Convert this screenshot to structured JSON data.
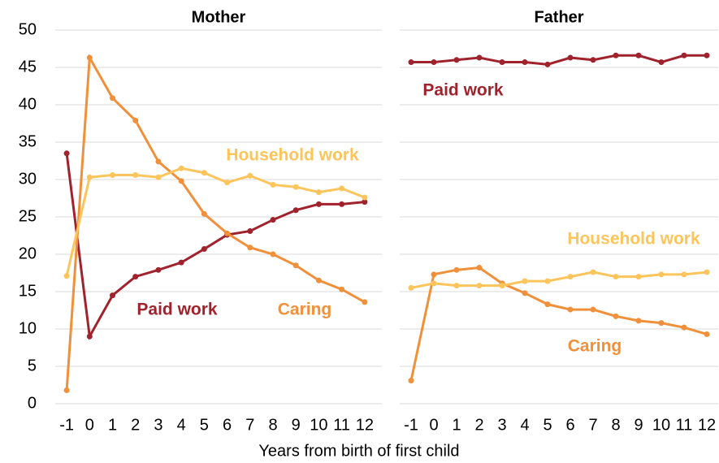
{
  "chart_data": [
    {
      "type": "line",
      "title": "Mother",
      "x": [
        -1,
        0,
        1,
        2,
        3,
        4,
        5,
        6,
        7,
        8,
        9,
        10,
        11,
        12
      ],
      "xlim": [
        -1.5,
        12.75
      ],
      "ylim": [
        0,
        50
      ],
      "yticks": [
        0,
        5,
        10,
        15,
        20,
        25,
        30,
        35,
        40,
        45,
        50
      ],
      "grid": true,
      "series": [
        {
          "name": "Paid work",
          "color": "#a0222d",
          "values": [
            33.5,
            9,
            14.5,
            17,
            17.9,
            18.9,
            20.7,
            22.6,
            23.1,
            24.6,
            25.9,
            26.7,
            26.7,
            27.0
          ]
        },
        {
          "name": "Caring",
          "color": "#f0903a",
          "values": [
            1.8,
            46.3,
            40.9,
            37.9,
            32.4,
            29.8,
            25.4,
            22.8,
            20.9,
            20.0,
            18.5,
            16.5,
            15.3,
            13.6
          ]
        },
        {
          "name": "Household work",
          "color": "#fcc55c",
          "values": [
            17.1,
            30.3,
            30.6,
            30.6,
            30.3,
            31.5,
            30.9,
            29.6,
            30.5,
            29.3,
            29.0,
            28.3,
            28.8,
            27.6
          ]
        }
      ]
    },
    {
      "type": "line",
      "title": "Father",
      "x": [
        -1,
        0,
        1,
        2,
        3,
        4,
        5,
        6,
        7,
        8,
        9,
        10,
        11,
        12
      ],
      "xlim": [
        -1.5,
        12.5
      ],
      "ylim": [
        0,
        50
      ],
      "yticks": [
        0,
        5,
        10,
        15,
        20,
        25,
        30,
        35,
        40,
        45,
        50
      ],
      "grid": true,
      "series": [
        {
          "name": "Paid work",
          "color": "#a0222d",
          "values": [
            45.7,
            45.7,
            46.0,
            46.3,
            45.7,
            45.7,
            45.4,
            46.3,
            46.0,
            46.6,
            46.6,
            45.7,
            46.6,
            46.6
          ]
        },
        {
          "name": "Caring",
          "color": "#f0903a",
          "values": [
            3.1,
            17.3,
            17.9,
            18.2,
            16.1,
            14.8,
            13.3,
            12.6,
            12.6,
            11.7,
            11.1,
            10.8,
            10.2,
            9.3
          ]
        },
        {
          "name": "Household work",
          "color": "#fcc55c",
          "values": [
            15.5,
            16.1,
            15.8,
            15.8,
            15.8,
            16.4,
            16.4,
            17.0,
            17.6,
            17.0,
            17.0,
            17.3,
            17.3,
            17.6
          ]
        }
      ]
    }
  ],
  "xlabel": "Years from birth of first child"
}
